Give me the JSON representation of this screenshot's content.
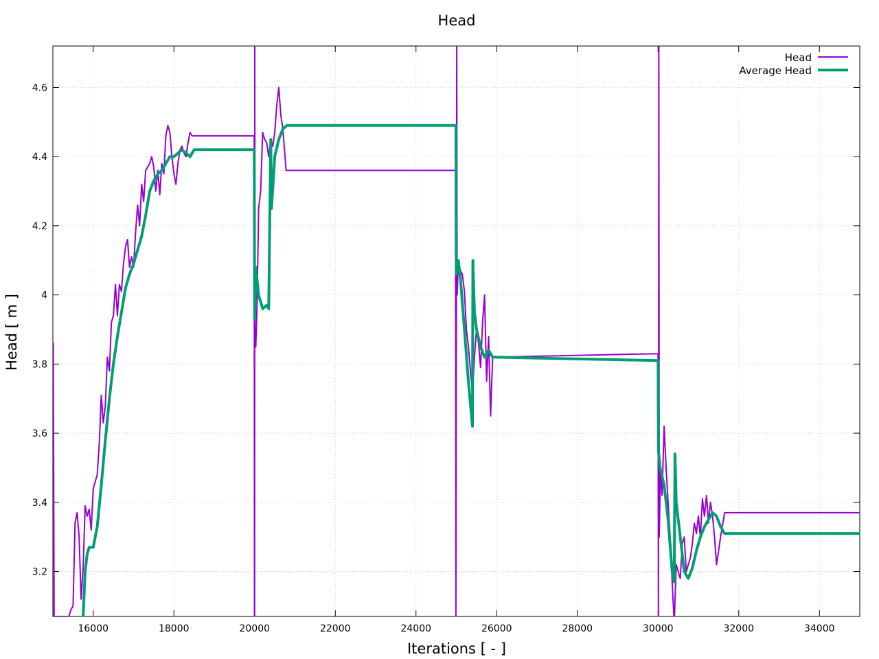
{
  "chart_data": {
    "type": "line",
    "title": "Head",
    "xlabel": "Iterations [ - ]",
    "ylabel": "Head [ m ]",
    "xlim": [
      15000,
      35000
    ],
    "ylim": [
      3.07,
      4.72
    ],
    "grid": true,
    "legend_position": "top-right",
    "x_ticks": [
      16000,
      18000,
      20000,
      22000,
      24000,
      26000,
      28000,
      30000,
      32000,
      34000
    ],
    "y_ticks": [
      3.2,
      3.4,
      3.6,
      3.8,
      4.0,
      4.2,
      4.4,
      4.6
    ],
    "y_tick_labels": [
      "3.2",
      "3.4",
      "3.6",
      "3.8",
      "4",
      "4.2",
      "4.4",
      "4.6"
    ],
    "series": [
      {
        "name": "Head",
        "color": "#9400d3",
        "width": 2,
        "points": [
          [
            15000,
            3.07
          ],
          [
            15010,
            3.86
          ],
          [
            15030,
            3.07
          ],
          [
            15400,
            3.07
          ],
          [
            15450,
            3.09
          ],
          [
            15500,
            3.1
          ],
          [
            15550,
            3.34
          ],
          [
            15600,
            3.37
          ],
          [
            15650,
            3.3
          ],
          [
            15700,
            3.12
          ],
          [
            15750,
            3.21
          ],
          [
            15800,
            3.39
          ],
          [
            15850,
            3.36
          ],
          [
            15900,
            3.38
          ],
          [
            15950,
            3.32
          ],
          [
            16000,
            3.44
          ],
          [
            16100,
            3.48
          ],
          [
            16150,
            3.57
          ],
          [
            16200,
            3.71
          ],
          [
            16250,
            3.63
          ],
          [
            16300,
            3.68
          ],
          [
            16350,
            3.82
          ],
          [
            16400,
            3.78
          ],
          [
            16450,
            3.92
          ],
          [
            16500,
            3.94
          ],
          [
            16550,
            4.03
          ],
          [
            16600,
            3.94
          ],
          [
            16650,
            4.03
          ],
          [
            16700,
            4.01
          ],
          [
            16750,
            4.09
          ],
          [
            16800,
            4.14
          ],
          [
            16850,
            4.16
          ],
          [
            16900,
            4.08
          ],
          [
            16950,
            4.11
          ],
          [
            17000,
            4.08
          ],
          [
            17050,
            4.18
          ],
          [
            17100,
            4.26
          ],
          [
            17150,
            4.2
          ],
          [
            17200,
            4.32
          ],
          [
            17250,
            4.27
          ],
          [
            17300,
            4.36
          ],
          [
            17400,
            4.38
          ],
          [
            17450,
            4.4
          ],
          [
            17500,
            4.37
          ],
          [
            17550,
            4.3
          ],
          [
            17600,
            4.36
          ],
          [
            17650,
            4.29
          ],
          [
            17700,
            4.38
          ],
          [
            17750,
            4.35
          ],
          [
            17800,
            4.46
          ],
          [
            17850,
            4.49
          ],
          [
            17900,
            4.47
          ],
          [
            17950,
            4.4
          ],
          [
            18000,
            4.35
          ],
          [
            18050,
            4.32
          ],
          [
            18100,
            4.38
          ],
          [
            18150,
            4.42
          ],
          [
            18200,
            4.43
          ],
          [
            18250,
            4.41
          ],
          [
            18300,
            4.4
          ],
          [
            18350,
            4.44
          ],
          [
            18400,
            4.47
          ],
          [
            18450,
            4.46
          ],
          [
            19990,
            4.46
          ],
          [
            19995,
            3.07
          ],
          [
            20000,
            3.07
          ],
          [
            20005,
            4.72
          ],
          [
            20010,
            3.9
          ],
          [
            20030,
            3.85
          ],
          [
            20060,
            3.97
          ],
          [
            20100,
            4.25
          ],
          [
            20150,
            4.3
          ],
          [
            20200,
            4.47
          ],
          [
            20250,
            4.45
          ],
          [
            20300,
            4.44
          ],
          [
            20350,
            4.4
          ],
          [
            20400,
            4.45
          ],
          [
            20450,
            4.43
          ],
          [
            20500,
            4.47
          ],
          [
            20550,
            4.55
          ],
          [
            20600,
            4.6
          ],
          [
            20650,
            4.52
          ],
          [
            20700,
            4.48
          ],
          [
            20780,
            4.36
          ],
          [
            24980,
            4.36
          ],
          [
            24990,
            3.07
          ],
          [
            25010,
            4.72
          ],
          [
            25020,
            4.0
          ],
          [
            25050,
            4.09
          ],
          [
            25100,
            4.07
          ],
          [
            25150,
            4.06
          ],
          [
            25200,
            4.01
          ],
          [
            25250,
            3.9
          ],
          [
            25300,
            3.85
          ],
          [
            25350,
            3.78
          ],
          [
            25400,
            3.72
          ],
          [
            25450,
            3.82
          ],
          [
            25500,
            3.9
          ],
          [
            25550,
            3.86
          ],
          [
            25600,
            3.79
          ],
          [
            25650,
            3.92
          ],
          [
            25700,
            4.0
          ],
          [
            25750,
            3.75
          ],
          [
            25800,
            3.88
          ],
          [
            25850,
            3.65
          ],
          [
            25900,
            3.82
          ],
          [
            30000,
            3.83
          ],
          [
            30010,
            3.07
          ],
          [
            30020,
            4.72
          ],
          [
            30030,
            3.3
          ],
          [
            30060,
            3.5
          ],
          [
            30100,
            3.42
          ],
          [
            30150,
            3.62
          ],
          [
            30200,
            3.5
          ],
          [
            30250,
            3.4
          ],
          [
            30300,
            3.3
          ],
          [
            30350,
            3.17
          ],
          [
            30400,
            3.05
          ],
          [
            30450,
            3.22
          ],
          [
            30500,
            3.2
          ],
          [
            30550,
            3.18
          ],
          [
            30600,
            3.28
          ],
          [
            30650,
            3.3
          ],
          [
            30700,
            3.2
          ],
          [
            30750,
            3.22
          ],
          [
            30800,
            3.24
          ],
          [
            30850,
            3.28
          ],
          [
            30900,
            3.34
          ],
          [
            30950,
            3.31
          ],
          [
            31000,
            3.36
          ],
          [
            31050,
            3.3
          ],
          [
            31100,
            3.41
          ],
          [
            31150,
            3.36
          ],
          [
            31200,
            3.42
          ],
          [
            31250,
            3.34
          ],
          [
            31300,
            3.4
          ],
          [
            31350,
            3.36
          ],
          [
            31400,
            3.3
          ],
          [
            31450,
            3.22
          ],
          [
            31500,
            3.26
          ],
          [
            31550,
            3.3
          ],
          [
            31650,
            3.37
          ],
          [
            35000,
            3.37
          ]
        ]
      },
      {
        "name": "Average Head",
        "color": "#009e73",
        "width": 4,
        "points": [
          [
            15750,
            3.07
          ],
          [
            15800,
            3.2
          ],
          [
            15850,
            3.25
          ],
          [
            15900,
            3.27
          ],
          [
            16000,
            3.27
          ],
          [
            16100,
            3.33
          ],
          [
            16200,
            3.45
          ],
          [
            16300,
            3.58
          ],
          [
            16400,
            3.7
          ],
          [
            16500,
            3.8
          ],
          [
            16600,
            3.88
          ],
          [
            16700,
            3.95
          ],
          [
            16800,
            4.02
          ],
          [
            16900,
            4.06
          ],
          [
            17000,
            4.09
          ],
          [
            17100,
            4.13
          ],
          [
            17200,
            4.17
          ],
          [
            17300,
            4.23
          ],
          [
            17400,
            4.3
          ],
          [
            17500,
            4.33
          ],
          [
            17600,
            4.35
          ],
          [
            17700,
            4.36
          ],
          [
            17800,
            4.38
          ],
          [
            17900,
            4.4
          ],
          [
            18000,
            4.4
          ],
          [
            18100,
            4.41
          ],
          [
            18200,
            4.42
          ],
          [
            18300,
            4.41
          ],
          [
            18400,
            4.4
          ],
          [
            18500,
            4.42
          ],
          [
            19990,
            4.42
          ],
          [
            20000,
            3.93
          ],
          [
            20030,
            4.08
          ],
          [
            20100,
            4.0
          ],
          [
            20200,
            3.96
          ],
          [
            20300,
            3.97
          ],
          [
            20350,
            3.96
          ],
          [
            20400,
            4.45
          ],
          [
            20420,
            4.25
          ],
          [
            20500,
            4.4
          ],
          [
            20600,
            4.45
          ],
          [
            20700,
            4.48
          ],
          [
            20800,
            4.49
          ],
          [
            24990,
            4.49
          ],
          [
            25000,
            4.06
          ],
          [
            25050,
            4.1
          ],
          [
            25100,
            4.05
          ],
          [
            25200,
            3.9
          ],
          [
            25300,
            3.75
          ],
          [
            25400,
            3.62
          ],
          [
            25410,
            4.1
          ],
          [
            25450,
            3.95
          ],
          [
            25500,
            3.9
          ],
          [
            25600,
            3.85
          ],
          [
            25700,
            3.82
          ],
          [
            25800,
            3.84
          ],
          [
            25900,
            3.82
          ],
          [
            30000,
            3.81
          ],
          [
            30010,
            3.55
          ],
          [
            30050,
            3.5
          ],
          [
            30150,
            3.45
          ],
          [
            30250,
            3.35
          ],
          [
            30350,
            3.2
          ],
          [
            30400,
            3.17
          ],
          [
            30420,
            3.54
          ],
          [
            30450,
            3.4
          ],
          [
            30550,
            3.3
          ],
          [
            30650,
            3.2
          ],
          [
            30750,
            3.18
          ],
          [
            30850,
            3.21
          ],
          [
            30950,
            3.26
          ],
          [
            31050,
            3.3
          ],
          [
            31150,
            3.33
          ],
          [
            31250,
            3.35
          ],
          [
            31350,
            3.37
          ],
          [
            31450,
            3.36
          ],
          [
            31550,
            3.33
          ],
          [
            31650,
            3.31
          ],
          [
            35000,
            3.31
          ]
        ]
      }
    ]
  }
}
